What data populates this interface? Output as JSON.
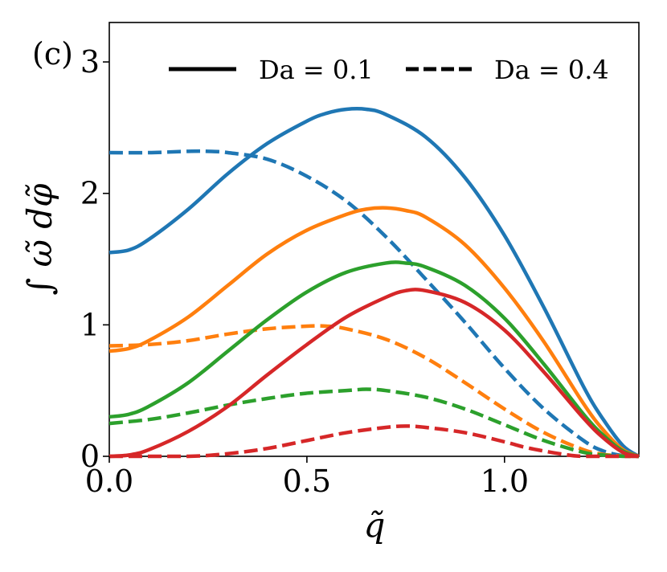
{
  "chart_data": {
    "type": "line",
    "panel_label": "(c)",
    "title": "",
    "xlabel": "q̃",
    "ylabel": "∫ ω̃ dφ̃",
    "xlim": [
      0,
      1.34
    ],
    "ylim": [
      0,
      3.3
    ],
    "xticks": [
      0.0,
      0.5,
      1.0
    ],
    "xtick_labels": [
      "0.0",
      "0.5",
      "1.0"
    ],
    "yticks": [
      0,
      1,
      2,
      3
    ],
    "ytick_labels": [
      "0",
      "1",
      "2",
      "3"
    ],
    "grid": false,
    "legend": {
      "placement": "top-right",
      "entries": [
        {
          "label": "Da = 0.1",
          "style": "solid"
        },
        {
          "label": "Da = 0.4",
          "style": "dashed"
        }
      ]
    },
    "series": [
      {
        "name": "blue Da = 0.1",
        "color": "#1f77b4",
        "style": "solid",
        "x": [
          0,
          0.05,
          0.1,
          0.2,
          0.3,
          0.4,
          0.5,
          0.55,
          0.6,
          0.65,
          0.7,
          0.8,
          0.9,
          1.0,
          1.1,
          1.2,
          1.25,
          1.3,
          1.34
        ],
        "y": [
          1.55,
          1.57,
          1.65,
          1.88,
          2.15,
          2.38,
          2.55,
          2.61,
          2.64,
          2.64,
          2.6,
          2.43,
          2.12,
          1.68,
          1.13,
          0.53,
          0.28,
          0.08,
          0.0
        ]
      },
      {
        "name": "blue Da = 0.4",
        "color": "#1f77b4",
        "style": "dashed",
        "x": [
          0,
          0.1,
          0.2,
          0.25,
          0.3,
          0.4,
          0.5,
          0.6,
          0.7,
          0.8,
          0.9,
          1.0,
          1.1,
          1.2,
          1.25,
          1.3,
          1.34
        ],
        "y": [
          2.31,
          2.31,
          2.32,
          2.32,
          2.31,
          2.26,
          2.13,
          1.94,
          1.67,
          1.35,
          1.02,
          0.67,
          0.36,
          0.12,
          0.04,
          0.005,
          0.0
        ]
      },
      {
        "name": "orange Da = 0.1",
        "color": "#ff7f0e",
        "style": "solid",
        "x": [
          0,
          0.05,
          0.1,
          0.2,
          0.3,
          0.4,
          0.5,
          0.6,
          0.65,
          0.7,
          0.75,
          0.8,
          0.9,
          1.0,
          1.1,
          1.2,
          1.25,
          1.3,
          1.34
        ],
        "y": [
          0.8,
          0.82,
          0.88,
          1.06,
          1.3,
          1.54,
          1.72,
          1.84,
          1.88,
          1.89,
          1.87,
          1.82,
          1.61,
          1.28,
          0.87,
          0.4,
          0.2,
          0.05,
          0.0
        ]
      },
      {
        "name": "orange Da = 0.4",
        "color": "#ff7f0e",
        "style": "dashed",
        "x": [
          0,
          0.1,
          0.2,
          0.3,
          0.4,
          0.5,
          0.55,
          0.6,
          0.7,
          0.8,
          0.9,
          1.0,
          1.1,
          1.2,
          1.25,
          1.3,
          1.34
        ],
        "y": [
          0.84,
          0.85,
          0.88,
          0.93,
          0.97,
          0.99,
          0.99,
          0.97,
          0.89,
          0.75,
          0.56,
          0.36,
          0.18,
          0.05,
          0.015,
          0.002,
          0.0
        ]
      },
      {
        "name": "green Da = 0.1",
        "color": "#2ca02c",
        "style": "solid",
        "x": [
          0,
          0.05,
          0.1,
          0.2,
          0.3,
          0.4,
          0.5,
          0.6,
          0.7,
          0.75,
          0.8,
          0.9,
          1.0,
          1.1,
          1.2,
          1.25,
          1.3,
          1.34
        ],
        "y": [
          0.3,
          0.32,
          0.38,
          0.56,
          0.8,
          1.04,
          1.25,
          1.4,
          1.47,
          1.47,
          1.44,
          1.3,
          1.05,
          0.7,
          0.32,
          0.16,
          0.04,
          0.0
        ]
      },
      {
        "name": "green Da = 0.4",
        "color": "#2ca02c",
        "style": "dashed",
        "x": [
          0,
          0.1,
          0.2,
          0.3,
          0.4,
          0.5,
          0.6,
          0.65,
          0.7,
          0.8,
          0.9,
          1.0,
          1.1,
          1.2,
          1.25,
          1.3,
          1.34
        ],
        "y": [
          0.25,
          0.28,
          0.33,
          0.39,
          0.44,
          0.48,
          0.5,
          0.51,
          0.5,
          0.45,
          0.36,
          0.24,
          0.12,
          0.03,
          0.01,
          0.0,
          0.0
        ]
      },
      {
        "name": "red Da = 0.1",
        "color": "#d62728",
        "style": "solid",
        "x": [
          0,
          0.05,
          0.1,
          0.2,
          0.3,
          0.4,
          0.5,
          0.6,
          0.7,
          0.75,
          0.8,
          0.9,
          1.0,
          1.1,
          1.2,
          1.25,
          1.3,
          1.34
        ],
        "y": [
          0.0,
          0.01,
          0.05,
          0.19,
          0.38,
          0.62,
          0.85,
          1.06,
          1.21,
          1.26,
          1.26,
          1.17,
          0.96,
          0.64,
          0.29,
          0.14,
          0.03,
          0.0
        ]
      },
      {
        "name": "red Da = 0.4",
        "color": "#d62728",
        "style": "dashed",
        "x": [
          0,
          0.2,
          0.3,
          0.4,
          0.5,
          0.6,
          0.7,
          0.75,
          0.8,
          0.9,
          1.0,
          1.05,
          1.1,
          1.15,
          1.2,
          1.34
        ],
        "y": [
          0.0,
          0.0,
          0.02,
          0.06,
          0.12,
          0.18,
          0.22,
          0.23,
          0.22,
          0.18,
          0.11,
          0.07,
          0.04,
          0.015,
          0.0,
          0.0
        ]
      }
    ]
  }
}
